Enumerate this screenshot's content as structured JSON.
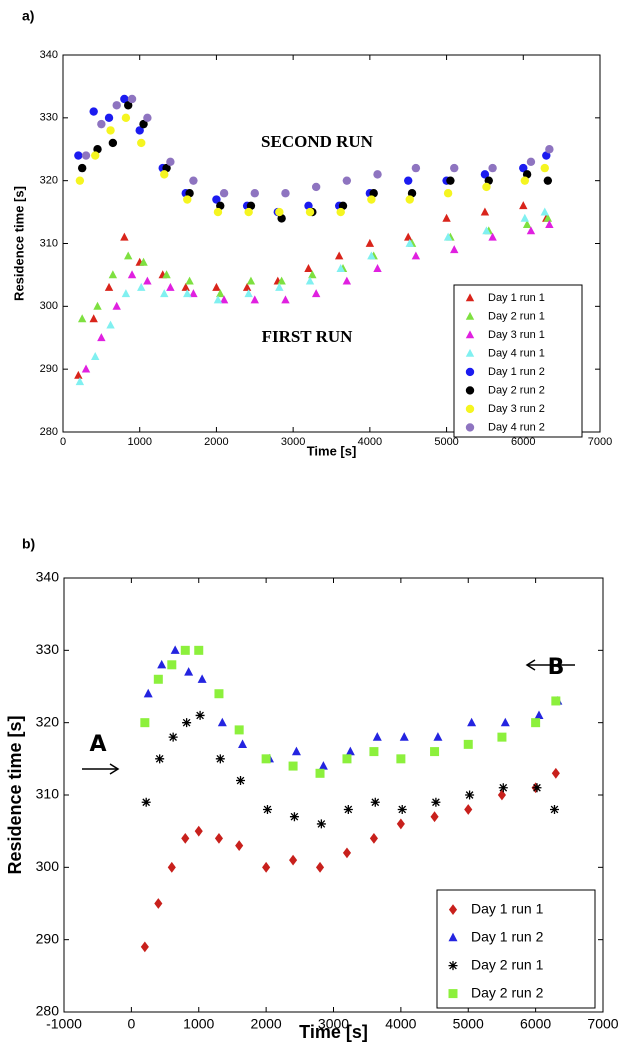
{
  "chart_data": [
    {
      "type": "scatter",
      "panel_label": "a)",
      "x_label": "Time [s]",
      "y_label": "Residence time [s]",
      "annotations": [
        "SECOND RUN",
        "FIRST RUN"
      ],
      "xlim": [
        0,
        7000
      ],
      "xticks": [
        0,
        1000,
        2000,
        3000,
        4000,
        5000,
        6000,
        7000
      ],
      "ylim": [
        280,
        340
      ],
      "yticks": [
        280,
        290,
        300,
        310,
        320,
        330,
        340
      ],
      "legend": "lower right",
      "series": [
        {
          "name": "Day 1 run 1",
          "color": "#d9241b",
          "marker": "triangle",
          "x": [
            200,
            400,
            600,
            800,
            1000,
            1300,
            1600,
            2000,
            2400,
            2800,
            3200,
            3600,
            4000,
            4500,
            5000,
            5500,
            6000,
            6300
          ],
          "values": [
            289,
            298,
            303,
            311,
            307,
            305,
            303,
            303,
            303,
            304,
            306,
            308,
            310,
            311,
            314,
            315,
            316,
            314
          ]
        },
        {
          "name": "Day 2 run 1",
          "color": "#7ee040",
          "marker": "triangle",
          "x": [
            250,
            450,
            650,
            850,
            1050,
            1350,
            1650,
            2050,
            2450,
            2850,
            3250,
            3650,
            4050,
            4550,
            5050,
            5550,
            6050,
            6320
          ],
          "values": [
            298,
            300,
            305,
            308,
            307,
            305,
            304,
            302,
            304,
            304,
            305,
            306,
            308,
            310,
            311,
            312,
            313,
            314
          ]
        },
        {
          "name": "Day 3 run 1",
          "color": "#e020e0",
          "marker": "triangle",
          "x": [
            300,
            500,
            700,
            900,
            1100,
            1400,
            1700,
            2100,
            2500,
            2900,
            3300,
            3700,
            4100,
            4600,
            5100,
            5600,
            6100,
            6340
          ],
          "values": [
            290,
            295,
            300,
            305,
            304,
            303,
            302,
            301,
            301,
            301,
            302,
            304,
            306,
            308,
            309,
            311,
            312,
            313
          ]
        },
        {
          "name": "Day 4 run 1",
          "color": "#80f0f0",
          "marker": "triangle",
          "x": [
            220,
            420,
            620,
            820,
            1020,
            1320,
            1620,
            2020,
            2420,
            2820,
            3220,
            3620,
            4020,
            4520,
            5020,
            5520,
            6020,
            6280
          ],
          "values": [
            288,
            292,
            297,
            302,
            303,
            302,
            302,
            301,
            302,
            303,
            304,
            306,
            308,
            310,
            311,
            312,
            314,
            315
          ]
        },
        {
          "name": "Day 1 run 2",
          "color": "#1b1bf0",
          "marker": "circle",
          "x": [
            200,
            400,
            600,
            800,
            1000,
            1300,
            1600,
            2000,
            2400,
            2800,
            3200,
            3600,
            4000,
            4500,
            5000,
            5500,
            6000,
            6300
          ],
          "values": [
            324,
            331,
            330,
            333,
            328,
            322,
            318,
            317,
            316,
            315,
            316,
            316,
            318,
            320,
            320,
            321,
            322,
            324
          ]
        },
        {
          "name": "Day 2 run 2",
          "color": "#000000",
          "marker": "circle",
          "x": [
            250,
            450,
            650,
            850,
            1050,
            1350,
            1650,
            2050,
            2450,
            2850,
            3250,
            3650,
            4050,
            4550,
            5050,
            5550,
            6050,
            6320
          ],
          "values": [
            322,
            325,
            326,
            332,
            329,
            322,
            318,
            316,
            316,
            314,
            315,
            316,
            318,
            318,
            320,
            320,
            321,
            320
          ]
        },
        {
          "name": "Day 3 run 2",
          "color": "#f5f520",
          "marker": "circle",
          "x": [
            220,
            420,
            620,
            820,
            1020,
            1320,
            1620,
            2020,
            2420,
            2820,
            3220,
            3620,
            4020,
            4520,
            5020,
            5520,
            6020,
            6280
          ],
          "values": [
            320,
            324,
            328,
            330,
            326,
            321,
            317,
            315,
            315,
            315,
            315,
            315,
            317,
            317,
            318,
            319,
            320,
            322
          ]
        },
        {
          "name": "Day 4 run 2",
          "color": "#8e74c0",
          "marker": "circle",
          "x": [
            300,
            500,
            700,
            900,
            1100,
            1400,
            1700,
            2100,
            2500,
            2900,
            3300,
            3700,
            4100,
            4600,
            5100,
            5600,
            6100,
            6340
          ],
          "values": [
            324,
            329,
            332,
            333,
            330,
            323,
            320,
            318,
            318,
            318,
            319,
            320,
            321,
            322,
            322,
            322,
            323,
            325
          ]
        }
      ]
    },
    {
      "type": "scatter",
      "panel_label": "b)",
      "x_label": "Time [s]",
      "y_label": "Residence time [s]",
      "annotations": [
        "A",
        "B"
      ],
      "xlim": [
        -1000,
        7000
      ],
      "xticks": [
        -1000,
        0,
        1000,
        2000,
        3000,
        4000,
        5000,
        6000,
        7000
      ],
      "ylim": [
        280,
        340
      ],
      "yticks": [
        280,
        290,
        300,
        310,
        320,
        330,
        340
      ],
      "legend": "lower right",
      "series": [
        {
          "name": "Day 1 run 1",
          "color": "#c8201c",
          "marker": "diamond",
          "x": [
            200,
            400,
            600,
            800,
            1000,
            1300,
            1600,
            2000,
            2400,
            2800,
            3200,
            3600,
            4000,
            4500,
            5000,
            5500,
            6000,
            6300
          ],
          "values": [
            289,
            295,
            300,
            304,
            305,
            304,
            303,
            300,
            301,
            300,
            302,
            304,
            306,
            307,
            308,
            310,
            311,
            313
          ]
        },
        {
          "name": "Day 1 run 2",
          "color": "#2424e0",
          "marker": "triangle",
          "x": [
            250,
            450,
            650,
            850,
            1050,
            1350,
            1650,
            2050,
            2450,
            2850,
            3250,
            3650,
            4050,
            4550,
            5050,
            5550,
            6050,
            6330
          ],
          "values": [
            324,
            328,
            330,
            327,
            326,
            320,
            317,
            315,
            316,
            314,
            316,
            318,
            318,
            318,
            320,
            320,
            321,
            323
          ]
        },
        {
          "name": "Day 2 run 1",
          "color": "#000000",
          "marker": "star",
          "x": [
            220,
            420,
            620,
            820,
            1020,
            1320,
            1620,
            2020,
            2420,
            2820,
            3220,
            3620,
            4020,
            4520,
            5020,
            5520,
            6020,
            6280
          ],
          "values": [
            309,
            315,
            318,
            320,
            321,
            315,
            312,
            308,
            307,
            306,
            308,
            309,
            308,
            309,
            310,
            311,
            311,
            308
          ]
        },
        {
          "name": "Day 2 run 2",
          "color": "#8cf03c",
          "marker": "square",
          "x": [
            200,
            400,
            600,
            800,
            1000,
            1300,
            1600,
            2000,
            2400,
            2800,
            3200,
            3600,
            4000,
            4500,
            5000,
            5500,
            6000,
            6300
          ],
          "values": [
            320,
            326,
            328,
            330,
            330,
            324,
            319,
            315,
            314,
            313,
            315,
            316,
            315,
            316,
            317,
            318,
            320,
            323
          ]
        }
      ]
    }
  ]
}
